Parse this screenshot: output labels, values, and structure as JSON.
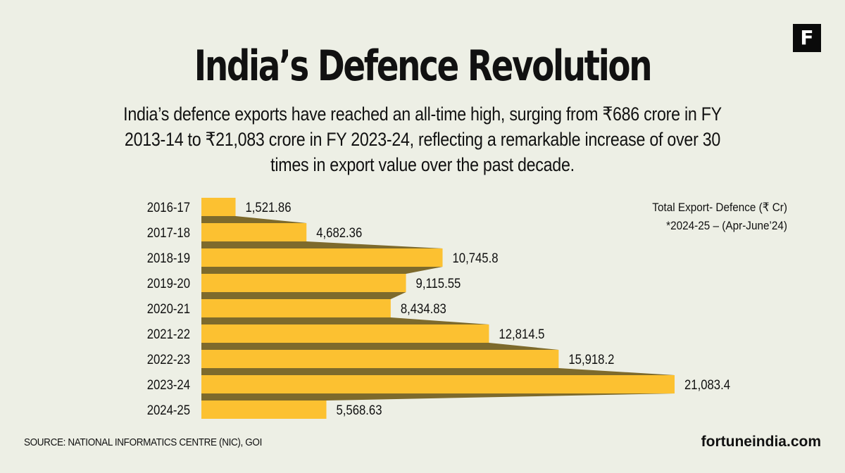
{
  "header": {
    "logo_letter": "F",
    "title": "India’s Defence Revolution",
    "subtitle": "India’s defence exports have reached an all-time high, surging from ₹686 crore in FY 2013-14 to ₹21,083 crore in FY 2023-24, reflecting a remarkable increase of over 30 times in export value over the past decade."
  },
  "colors": {
    "background": "#edefe5",
    "bar": "#fcc131",
    "connector": "#7d6a2c",
    "text": "#111111"
  },
  "chart_data": {
    "type": "bar",
    "orientation": "horizontal",
    "title": "India’s Defence Revolution",
    "legend": [
      "Total Export- Defence (₹ Cr)",
      "*2024-25 – (Apr-June’24)"
    ],
    "legend_position": "top-right",
    "categories": [
      "2016-17",
      "2017-18",
      "2018-19",
      "2019-20",
      "2020-21",
      "2021-22",
      "2022-23",
      "2023-24",
      "2024-25"
    ],
    "values": [
      1521.86,
      4682.36,
      10745.8,
      9115.55,
      8434.83,
      12814.5,
      15918.2,
      21083.4,
      5568.63
    ],
    "value_labels": [
      "1,521.86",
      "4,682.36",
      "10,745.8",
      "9,115.55",
      "8,434.83",
      "12,814.5",
      "15,918.2",
      "21,083.4",
      "5,568.63"
    ],
    "xlabel": "",
    "ylabel": "",
    "xlim": [
      0,
      21083.4
    ],
    "grid": false
  },
  "footer": {
    "source": "SOURCE: NATIONAL INFORMATICS CENTRE (NIC), GOI",
    "site": "fortuneindia.com"
  }
}
